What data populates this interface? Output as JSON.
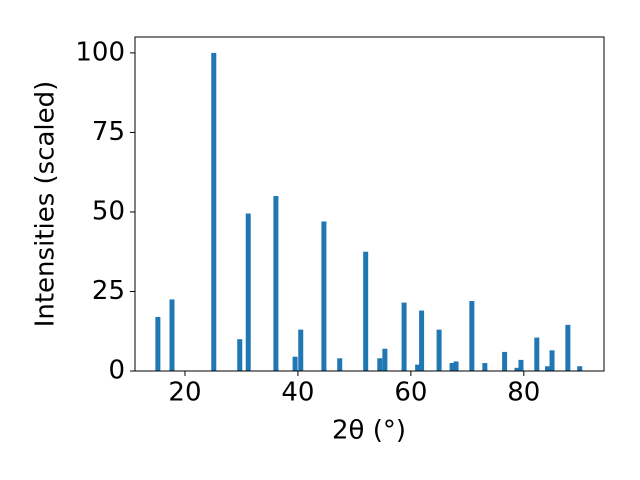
{
  "chart_data": {
    "type": "bar",
    "xlabel": "2θ (°)",
    "ylabel": "Intensities (scaled)",
    "x": [
      15.2,
      17.7,
      25.1,
      29.7,
      31.2,
      36.1,
      39.5,
      40.5,
      44.6,
      47.4,
      52.0,
      54.5,
      55.4,
      58.8,
      61.2,
      61.9,
      65.0,
      67.3,
      68.0,
      70.8,
      73.1,
      76.6,
      78.8,
      79.5,
      82.3,
      84.2,
      85.0,
      87.8,
      89.9
    ],
    "values": [
      17,
      22.5,
      100,
      10,
      49.5,
      55,
      4.5,
      13,
      47,
      4,
      37.5,
      4,
      7,
      21.5,
      2,
      19,
      13,
      2.5,
      3,
      22,
      2.5,
      6,
      1,
      3.5,
      10.5,
      1.5,
      6.5,
      14.5,
      1.5
    ],
    "color": "#1f77b4",
    "xlim": [
      11.15,
      94.2
    ],
    "xticks": [
      20,
      40,
      60,
      80
    ],
    "ylim": [
      0,
      105
    ],
    "yticks": [
      0,
      25,
      50,
      75,
      100
    ]
  }
}
